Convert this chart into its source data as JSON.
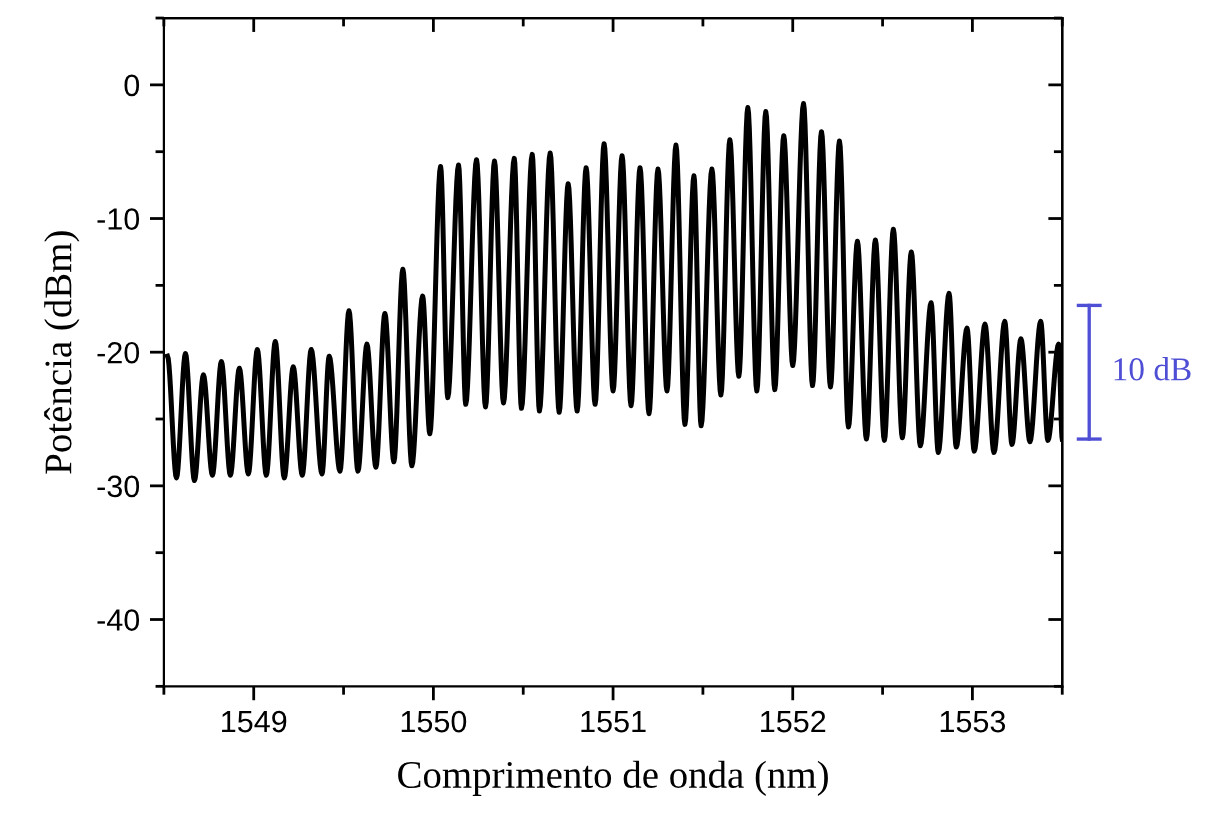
{
  "chart_data": {
    "type": "line",
    "xlabel": "Comprimento de onda (nm)",
    "ylabel": "Potência (dBm)",
    "annotations": [
      "10 dB"
    ],
    "xlim": [
      1548.5,
      1553.5
    ],
    "xticks": [
      {
        "value": 1548.5,
        "label": null
      },
      1549,
      {
        "value": 1549.5,
        "label": null
      },
      1550,
      {
        "value": 1550.5,
        "label": null
      },
      1551,
      {
        "value": 1551.5,
        "label": null
      },
      1552,
      {
        "value": 1552.5,
        "label": null
      },
      1553,
      {
        "value": 1553.5,
        "label": null
      }
    ],
    "ylim": [
      -45,
      5
    ],
    "yticks": [
      {
        "value": -45,
        "label": null
      },
      -40,
      {
        "value": -35,
        "label": null
      },
      -30,
      {
        "value": -25,
        "label": null
      },
      -20,
      {
        "value": -15,
        "label": null
      },
      -10,
      {
        "value": -5,
        "label": null
      },
      0,
      {
        "value": 5,
        "label": null
      }
    ],
    "marker": "none",
    "line_style": "solid",
    "series": [
      {
        "color": "#000000",
        "x": [
          1548.52,
          1548.57,
          1548.62,
          1548.67,
          1548.72,
          1548.77,
          1548.82,
          1548.87,
          1548.92,
          1548.97,
          1549.02,
          1549.07,
          1549.12,
          1549.17,
          1549.22,
          1549.27,
          1549.32,
          1549.38,
          1549.42,
          1549.48,
          1549.53,
          1549.58,
          1549.63,
          1549.68,
          1549.73,
          1549.78,
          1549.83,
          1549.88,
          1549.94,
          1549.98,
          1550.04,
          1550.08,
          1550.14,
          1550.18,
          1550.24,
          1550.29,
          1550.34,
          1550.39,
          1550.45,
          1550.49,
          1550.55,
          1550.59,
          1550.65,
          1550.7,
          1550.75,
          1550.8,
          1550.85,
          1550.9,
          1550.95,
          1551.0,
          1551.05,
          1551.1,
          1551.15,
          1551.2,
          1551.25,
          1551.3,
          1551.35,
          1551.4,
          1551.45,
          1551.49,
          1551.55,
          1551.6,
          1551.65,
          1551.7,
          1551.75,
          1551.8,
          1551.85,
          1551.9,
          1551.95,
          1552.0,
          1552.06,
          1552.11,
          1552.16,
          1552.21,
          1552.26,
          1552.31,
          1552.36,
          1552.41,
          1552.46,
          1552.51,
          1552.56,
          1552.61,
          1552.66,
          1552.71,
          1552.77,
          1552.81,
          1552.87,
          1552.91,
          1552.97,
          1553.01,
          1553.07,
          1553.12,
          1553.18,
          1553.22,
          1553.27,
          1553.32,
          1553.38,
          1553.42,
          1553.48,
          1553.5
        ],
        "values": [
          -20.3,
          -29.4,
          -20.1,
          -29.6,
          -21.7,
          -29.2,
          -20.7,
          -29.2,
          -21.2,
          -29.1,
          -19.8,
          -29.2,
          -19.2,
          -29.4,
          -21.1,
          -29.2,
          -19.8,
          -29.1,
          -20.3,
          -28.9,
          -16.9,
          -28.9,
          -19.4,
          -28.6,
          -17.1,
          -28.2,
          -13.8,
          -28.5,
          -15.8,
          -26.1,
          -6.1,
          -23.4,
          -6.0,
          -23.9,
          -5.6,
          -24.1,
          -5.7,
          -23.8,
          -5.5,
          -24.2,
          -5.2,
          -24.4,
          -5.1,
          -24.5,
          -7.4,
          -24.4,
          -6.2,
          -23.9,
          -4.4,
          -22.9,
          -5.3,
          -24.0,
          -6.2,
          -24.6,
          -6.3,
          -22.9,
          -4.5,
          -25.4,
          -6.8,
          -25.5,
          -6.3,
          -23.2,
          -4.1,
          -21.8,
          -1.7,
          -22.9,
          -2.0,
          -22.8,
          -3.8,
          -21.0,
          -1.4,
          -22.5,
          -3.5,
          -22.6,
          -4.2,
          -25.6,
          -11.7,
          -26.5,
          -11.6,
          -26.6,
          -10.8,
          -26.4,
          -12.5,
          -27.0,
          -16.3,
          -27.5,
          -15.6,
          -27.1,
          -18.2,
          -27.4,
          -17.9,
          -27.5,
          -17.7,
          -26.9,
          -19.0,
          -26.7,
          -17.7,
          -26.6,
          -19.4,
          -26.5
        ]
      }
    ]
  }
}
